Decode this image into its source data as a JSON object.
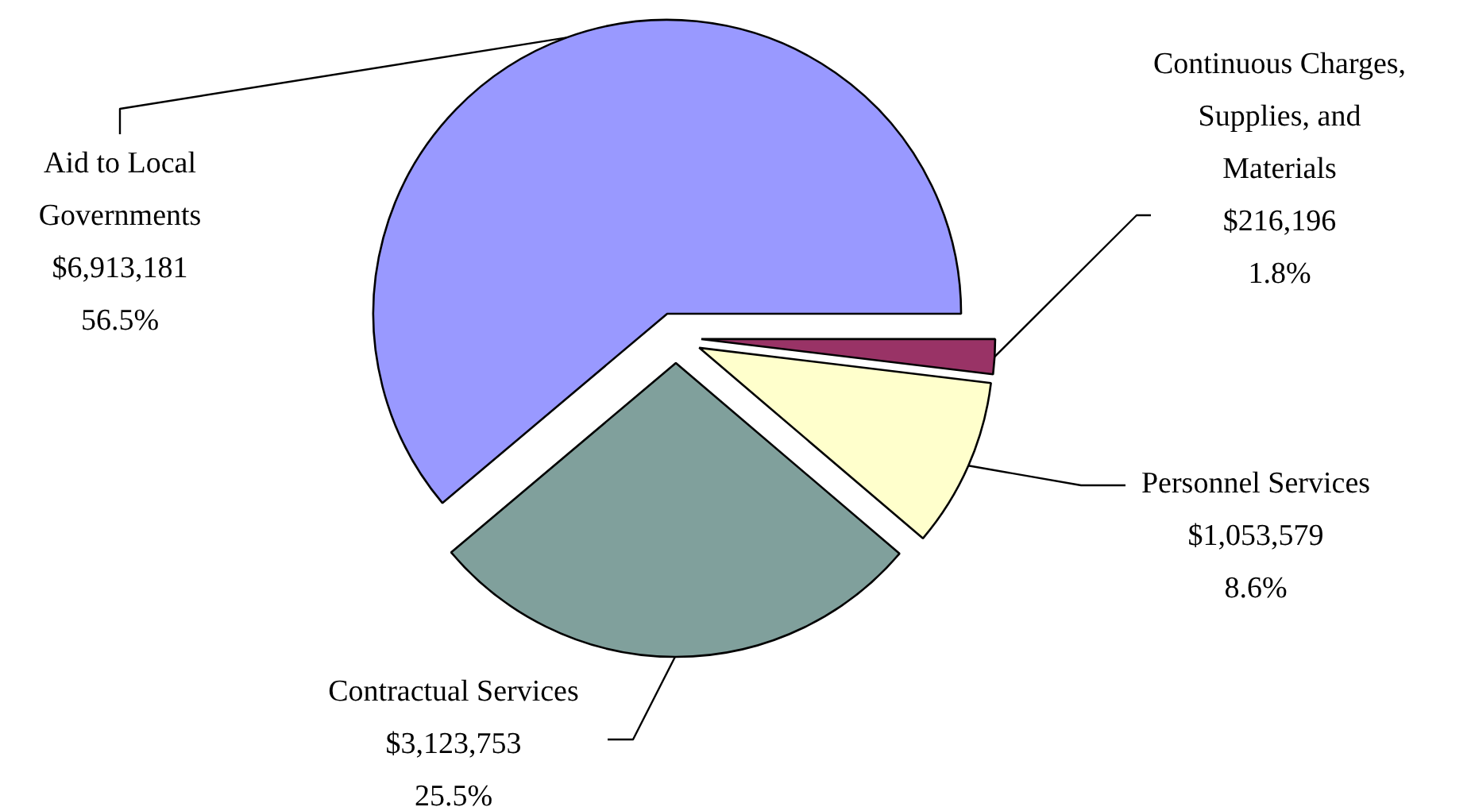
{
  "chart_data": {
    "type": "pie",
    "categories": [
      "Aid to Local Governments",
      "Contractual Services",
      "Personnel Services",
      "Continuous Charges, Supplies, and Materials"
    ],
    "values": [
      6913181,
      3123753,
      1053579,
      216196
    ],
    "colors": [
      "#9999ff",
      "#80a09c",
      "#ffffcc",
      "#993366"
    ],
    "value_labels": [
      "$6,913,181\n56.5%",
      "$3,123,753\n25.5%",
      "$1,053,579\n8.6%",
      "$216,196\n1.8%"
    ]
  }
}
